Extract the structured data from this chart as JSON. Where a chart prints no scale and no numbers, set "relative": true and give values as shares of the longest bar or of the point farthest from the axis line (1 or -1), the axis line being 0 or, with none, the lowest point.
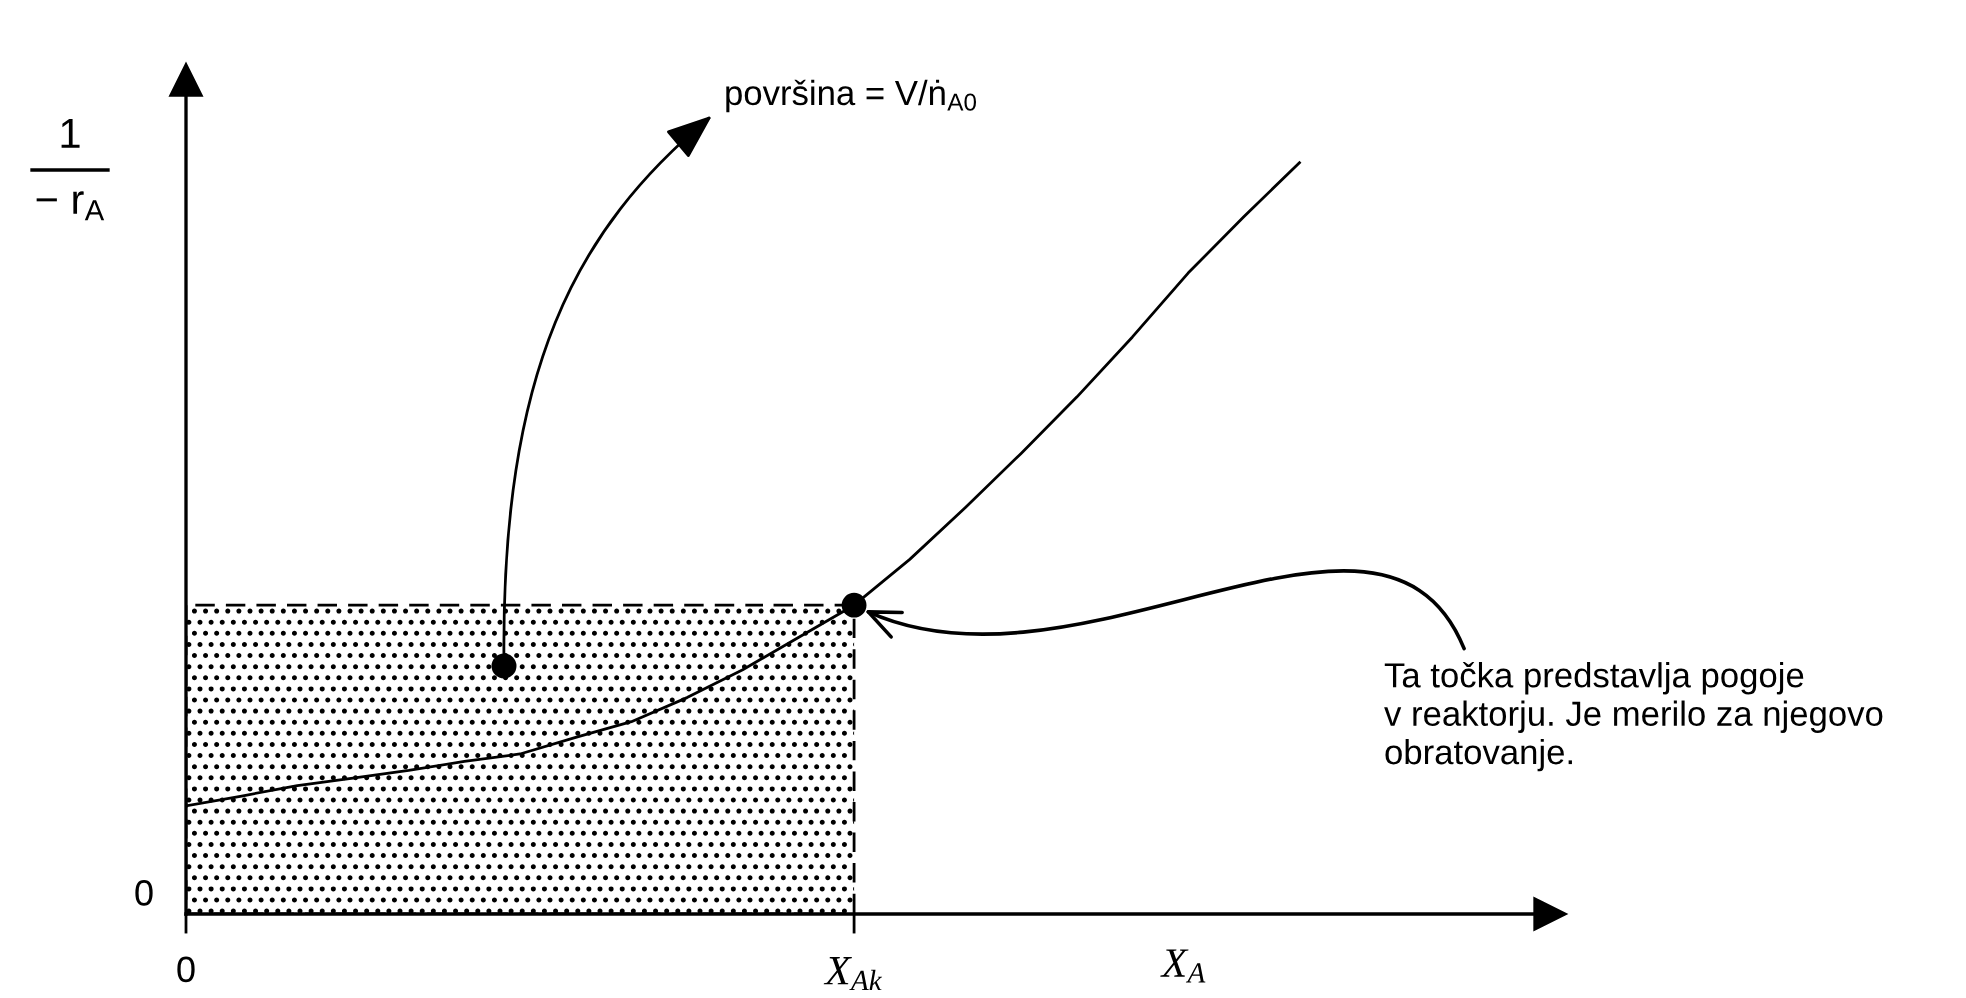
{
  "chart_data": {
    "type": "line",
    "relative": true,
    "xlabel": "X$_{A}$",
    "ylabel": "1\n− r$_{A}$",
    "categories": [
      "0",
      null,
      null,
      null,
      null,
      null,
      null,
      null,
      null,
      null,
      null,
      null,
      "X$_{Ak}$",
      null,
      null,
      null,
      null,
      null,
      null,
      null,
      null
    ],
    "series": [
      {
        "type": "area",
        "color": "#000000",
        "line_style": "dashed",
        "values": [
          0.411,
          0.411,
          0.411,
          0.411,
          0.411,
          0.411,
          0.411,
          0.411,
          0.411,
          0.411,
          0.411,
          0.411,
          0.411,
          null,
          null,
          null,
          null,
          null,
          null,
          null,
          null
        ]
      },
      {
        "color": "#000000",
        "values": [
          0.144,
          0.157,
          0.171,
          0.181,
          0.191,
          0.203,
          0.213,
          0.235,
          0.256,
          0.288,
          0.325,
          0.368,
          0.411,
          0.472,
          0.541,
          0.613,
          0.688,
          0.768,
          0.853,
          0.928,
          1.0
        ]
      },
      {
        "type": "scatter",
        "color": "#000000",
        "marker": "circle",
        "values": [
          null,
          null,
          null,
          null,
          null,
          null,
          null,
          null,
          null,
          null,
          null,
          null,
          0.411,
          null,
          null,
          null,
          null,
          null,
          null,
          null,
          null
        ]
      }
    ],
    "annotations": [
      "0",
      "površina = V/ṅ$_{A0}$",
      {
        "text": "Ta točka predstavlja pogoje\nv reaktorju. Je merilo za njegovo\nobratovanje.",
        "x": "X$_{Ak}$",
        "y": 0.411
      }
    ]
  }
}
